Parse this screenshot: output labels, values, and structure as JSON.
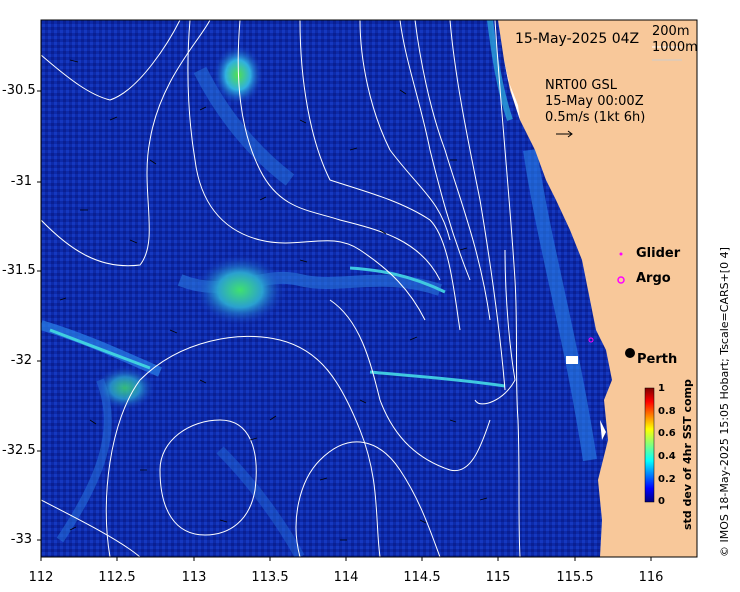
{
  "header": {
    "timestamp": "15-May-2025 04Z",
    "depth_contour_1": "200m",
    "depth_contour_2": "1000m"
  },
  "currents": {
    "product": "NRT00 GSL",
    "time": "15-May 00:00Z",
    "scale": "0.5m/s (1kt 6h)"
  },
  "legend": {
    "glider": "Glider",
    "argo": "Argo",
    "glider_color": "#ff00ff",
    "argo_color": "#ff00ff"
  },
  "places": {
    "perth": "Perth"
  },
  "axes": {
    "x_ticks": [
      "112",
      "112.5",
      "113",
      "113.5",
      "114",
      "114.5",
      "115",
      "115.5",
      "116"
    ],
    "y_ticks": [
      "-30.5",
      "-31",
      "-31.5",
      "-32",
      "-32.5",
      "-33"
    ]
  },
  "colorbar": {
    "title": "std dev of 4hr SST comp",
    "ticks": [
      "1",
      "0.8",
      "0.6",
      "0.4",
      "0.2",
      "0"
    ]
  },
  "credit": "© IMOS 18-May-2025 15:05 Hobart; Tscale=CARS+[0 4]",
  "colors": {
    "land": "#f8c89a",
    "ocean_low": "#0a1a8c",
    "ocean_mid": "#1e50e0",
    "front": "#30c0e0",
    "hotspot": "#30d060"
  }
}
